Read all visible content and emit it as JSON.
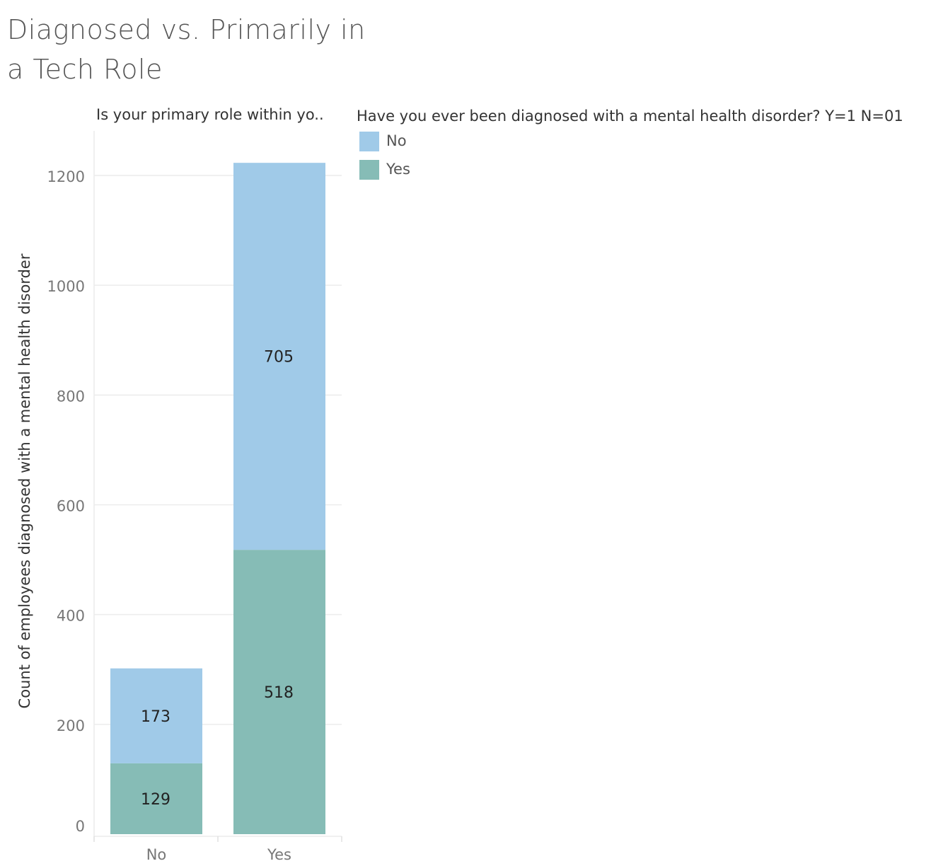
{
  "title": "Diagnosed vs. Primarily in a Tech Role",
  "column_header": "Is your primary role within yo..",
  "legend": {
    "title": "Have you ever been diagnosed with a mental health disorder? Y=1 N=01",
    "items": [
      {
        "label": "No",
        "color": "#A0CAE8"
      },
      {
        "label": "Yes",
        "color": "#86BCB6"
      }
    ]
  },
  "chart_data": {
    "type": "bar",
    "stacked": true,
    "categories": [
      "No",
      "Yes"
    ],
    "series": [
      {
        "name": "Yes",
        "values": [
          129,
          518
        ],
        "color": "#86BCB6"
      },
      {
        "name": "No",
        "values": [
          173,
          705
        ],
        "color": "#A0CAE8"
      }
    ],
    "ylabel": "Count of employees diagnosed with a mental health disorder",
    "xlabel": "",
    "ylim": [
      0,
      1200
    ],
    "yticks": [
      0,
      200,
      400,
      600,
      800,
      1000,
      1200
    ],
    "grid": true,
    "legend_position": "right"
  }
}
